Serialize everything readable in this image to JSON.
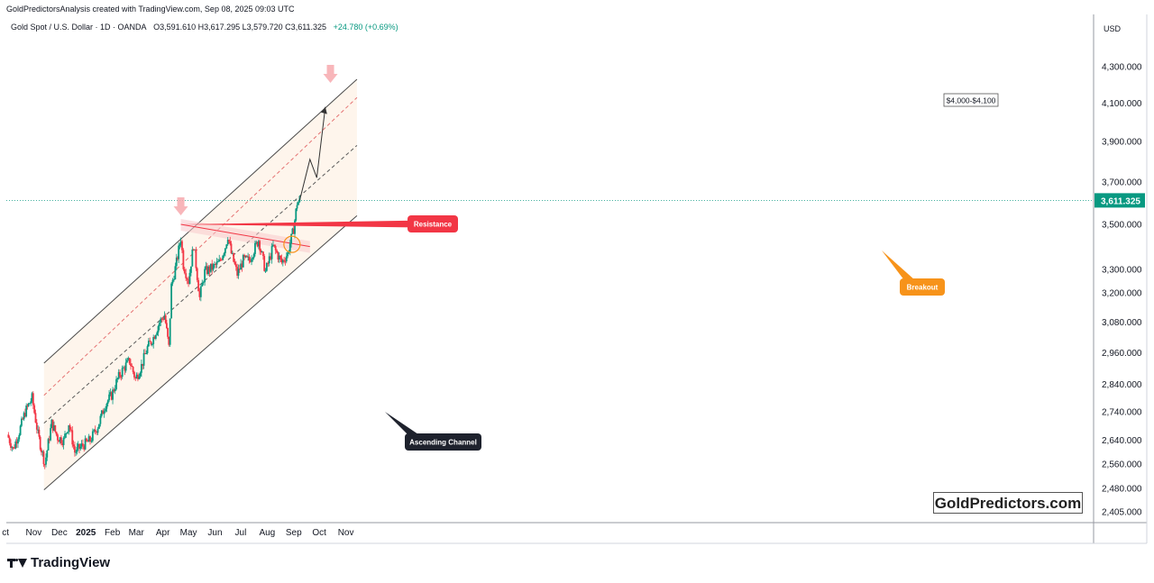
{
  "header": {
    "credit": "GoldPredictorsAnalysis created with TradingView.com, Sep 08, 2025 09:03 UTC",
    "symbol": "Gold Spot / U.S. Dollar · 1D · OANDA",
    "ohlc": "O3,591.610  H3,617.295  L3,579.720  C3,611.325",
    "change": "+24.780 (+0.69%)",
    "currency": "USD"
  },
  "chart_data": {
    "type": "candlestick",
    "title": "Gold Spot / U.S. Dollar · 1D · OANDA",
    "last_price": 3611.325,
    "last_price_label": "3,611.325",
    "y_scale": "log",
    "ylim": [
      2360,
      4420
    ],
    "x_tick_labels": [
      "ct",
      "Nov",
      "Dec",
      "2025",
      "Feb",
      "Mar",
      "Apr",
      "May",
      "Jun",
      "Jul",
      "Aug",
      "Sep",
      "Oct",
      "Nov"
    ],
    "y_tick_labels": [
      "4,300.000",
      "4,100.000",
      "3,900.000",
      "3,700.000",
      "3,500.000",
      "3,300.000",
      "3,200.000",
      "3,080.000",
      "2,960.000",
      "2,840.000",
      "2,740.000",
      "2,640.000",
      "2,560.000",
      "2,480.000",
      "2,405.000"
    ],
    "y_ticks": [
      4300,
      4100,
      3900,
      3700,
      3500,
      3300,
      3200,
      3080,
      2960,
      2840,
      2740,
      2640,
      2560,
      2480,
      2405
    ],
    "close_path": [
      [
        "2024-10-01",
        2660
      ],
      [
        "2024-10-08",
        2610
      ],
      [
        "2024-10-15",
        2670
      ],
      [
        "2024-10-22",
        2740
      ],
      [
        "2024-10-30",
        2790
      ],
      [
        "2024-11-06",
        2660
      ],
      [
        "2024-11-14",
        2560
      ],
      [
        "2024-11-22",
        2700
      ],
      [
        "2024-11-29",
        2650
      ],
      [
        "2024-12-06",
        2640
      ],
      [
        "2024-12-12",
        2700
      ],
      [
        "2024-12-19",
        2600
      ],
      [
        "2024-12-27",
        2620
      ],
      [
        "2025-01-06",
        2640
      ],
      [
        "2025-01-15",
        2690
      ],
      [
        "2025-01-24",
        2770
      ],
      [
        "2025-01-31",
        2800
      ],
      [
        "2025-02-07",
        2860
      ],
      [
        "2025-02-14",
        2900
      ],
      [
        "2025-02-21",
        2930
      ],
      [
        "2025-02-28",
        2860
      ],
      [
        "2025-03-07",
        2910
      ],
      [
        "2025-03-14",
        2980
      ],
      [
        "2025-03-21",
        3020
      ],
      [
        "2025-03-28",
        3080
      ],
      [
        "2025-04-03",
        3110
      ],
      [
        "2025-04-08",
        2980
      ],
      [
        "2025-04-11",
        3230
      ],
      [
        "2025-04-17",
        3330
      ],
      [
        "2025-04-22",
        3440
      ],
      [
        "2025-04-25",
        3320
      ],
      [
        "2025-05-01",
        3250
      ],
      [
        "2025-05-07",
        3410
      ],
      [
        "2025-05-14",
        3180
      ],
      [
        "2025-05-20",
        3290
      ],
      [
        "2025-05-30",
        3310
      ],
      [
        "2025-06-06",
        3330
      ],
      [
        "2025-06-13",
        3400
      ],
      [
        "2025-06-16",
        3450
      ],
      [
        "2025-06-20",
        3370
      ],
      [
        "2025-06-27",
        3280
      ],
      [
        "2025-07-04",
        3340
      ],
      [
        "2025-07-11",
        3340
      ],
      [
        "2025-07-22",
        3430
      ],
      [
        "2025-07-30",
        3290
      ],
      [
        "2025-08-08",
        3400
      ],
      [
        "2025-08-18",
        3330
      ],
      [
        "2025-08-25",
        3370
      ],
      [
        "2025-09-01",
        3480
      ],
      [
        "2025-09-05",
        3600
      ],
      [
        "2025-09-08",
        3611.325
      ]
    ],
    "projection": [
      [
        "2025-09-08",
        3611.325
      ],
      [
        "2025-09-20",
        3810
      ],
      [
        "2025-09-28",
        3720
      ],
      [
        "2025-10-08",
        4080
      ]
    ],
    "ascending_channel": {
      "upper": [
        [
          "2024-11-13",
          2920
        ],
        [
          "2025-11-14",
          4230
        ]
      ],
      "middle": [
        [
          "2024-11-13",
          2700
        ],
        [
          "2025-11-14",
          3880
        ]
      ],
      "lower": [
        [
          "2024-11-13",
          2475
        ],
        [
          "2025-11-14",
          3540
        ]
      ],
      "dashed_upper": [
        [
          "2024-11-13",
          2800
        ],
        [
          "2025-11-14",
          4130
        ]
      ]
    },
    "resistance_line": [
      [
        "2025-04-22",
        3500
      ],
      [
        "2025-09-20",
        3400
      ]
    ],
    "annotations": [
      {
        "text": "Resistance",
        "color": "#f23645"
      },
      {
        "text": "Ascending Channel",
        "color": "#1e222d"
      },
      {
        "text": "Breakout",
        "color": "#f7931a"
      },
      {
        "text": "$4,000-$4,100",
        "color": "#ffffff"
      }
    ],
    "colors": {
      "up": "#089981",
      "down": "#f23645",
      "channel_fill": "#fdf1e6",
      "price_tag": "#089981"
    }
  },
  "watermark": "GoldPredictors.com",
  "footer": {
    "logo_text": "TradingView"
  }
}
